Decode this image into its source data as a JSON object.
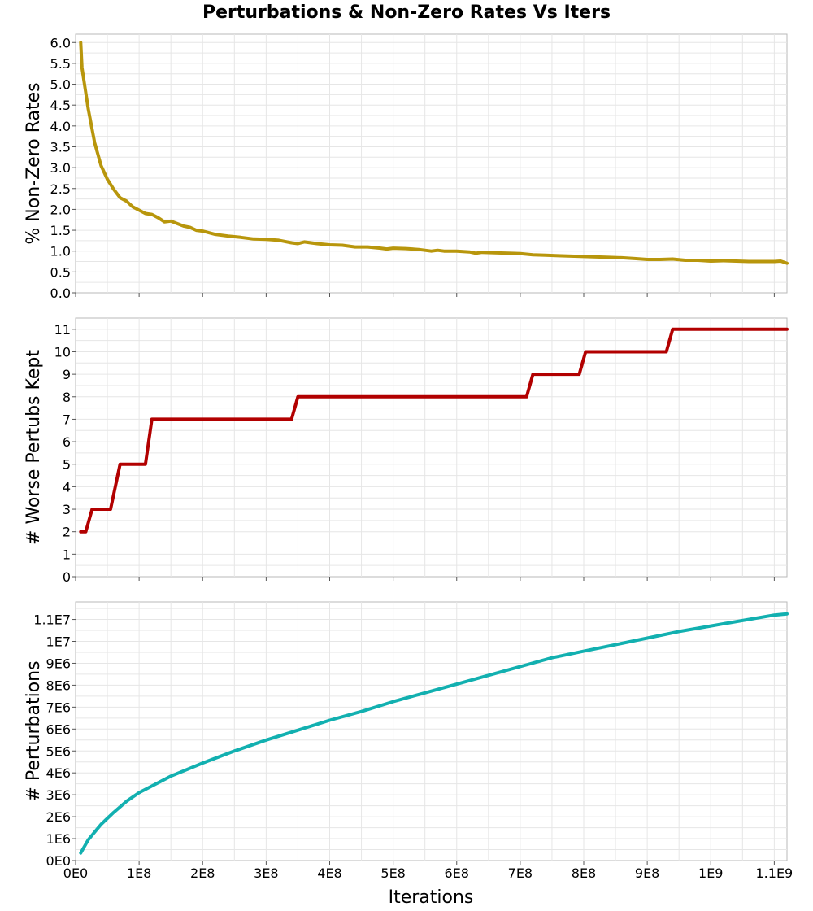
{
  "chart_data": {
    "type": "line",
    "title": "Perturbations & Non-Zero Rates Vs Iters",
    "xlabel": "Iterations",
    "x_ticks": [
      {
        "v": 0,
        "label": "0E0"
      },
      {
        "v": 100000000,
        "label": "1E8"
      },
      {
        "v": 200000000,
        "label": "2E8"
      },
      {
        "v": 300000000,
        "label": "3E8"
      },
      {
        "v": 400000000,
        "label": "4E8"
      },
      {
        "v": 500000000,
        "label": "5E8"
      },
      {
        "v": 600000000,
        "label": "6E8"
      },
      {
        "v": 700000000,
        "label": "7E8"
      },
      {
        "v": 800000000,
        "label": "8E8"
      },
      {
        "v": 900000000,
        "label": "9E8"
      },
      {
        "v": 1000000000,
        "label": "1E9"
      },
      {
        "v": 1100000000,
        "label": "1.1E9"
      }
    ],
    "xlim": [
      0,
      1120000000
    ],
    "panels": [
      {
        "name": "rates",
        "ylabel": "% Non-Zero Rates",
        "color": "#b8960c",
        "ylim": [
          0,
          6.2
        ],
        "y_ticks": [
          {
            "v": 0,
            "label": "0.0"
          },
          {
            "v": 0.5,
            "label": "0.5"
          },
          {
            "v": 1,
            "label": "1.0"
          },
          {
            "v": 1.5,
            "label": "1.5"
          },
          {
            "v": 2,
            "label": "2.0"
          },
          {
            "v": 2.5,
            "label": "2.5"
          },
          {
            "v": 3,
            "label": "3.0"
          },
          {
            "v": 3.5,
            "label": "3.5"
          },
          {
            "v": 4,
            "label": "4.0"
          },
          {
            "v": 4.5,
            "label": "4.5"
          },
          {
            "v": 5,
            "label": "5.0"
          },
          {
            "v": 5.5,
            "label": "5.5"
          },
          {
            "v": 6,
            "label": "6.0"
          }
        ],
        "x": [
          8000000,
          10000000,
          20000000,
          30000000,
          40000000,
          50000000,
          60000000,
          70000000,
          80000000,
          90000000,
          100000000,
          110000000,
          120000000,
          130000000,
          140000000,
          150000000,
          160000000,
          170000000,
          180000000,
          190000000,
          200000000,
          220000000,
          240000000,
          260000000,
          280000000,
          300000000,
          320000000,
          340000000,
          350000000,
          360000000,
          380000000,
          400000000,
          420000000,
          440000000,
          460000000,
          480000000,
          490000000,
          500000000,
          520000000,
          540000000,
          560000000,
          570000000,
          580000000,
          600000000,
          620000000,
          630000000,
          640000000,
          660000000,
          680000000,
          700000000,
          720000000,
          740000000,
          760000000,
          780000000,
          800000000,
          820000000,
          840000000,
          860000000,
          880000000,
          900000000,
          920000000,
          940000000,
          960000000,
          980000000,
          1000000000,
          1020000000,
          1040000000,
          1060000000,
          1080000000,
          1100000000,
          1110000000,
          1120000000
        ],
        "y": [
          6.0,
          5.4,
          4.4,
          3.6,
          3.05,
          2.72,
          2.48,
          2.28,
          2.2,
          2.06,
          1.98,
          1.9,
          1.88,
          1.8,
          1.7,
          1.72,
          1.66,
          1.6,
          1.57,
          1.5,
          1.48,
          1.4,
          1.36,
          1.33,
          1.29,
          1.28,
          1.26,
          1.2,
          1.18,
          1.22,
          1.18,
          1.15,
          1.14,
          1.1,
          1.1,
          1.07,
          1.05,
          1.07,
          1.06,
          1.04,
          1.0,
          1.02,
          1.0,
          1.0,
          0.98,
          0.95,
          0.97,
          0.96,
          0.95,
          0.94,
          0.91,
          0.9,
          0.89,
          0.88,
          0.87,
          0.86,
          0.85,
          0.84,
          0.82,
          0.8,
          0.8,
          0.81,
          0.78,
          0.78,
          0.76,
          0.77,
          0.76,
          0.75,
          0.75,
          0.75,
          0.76,
          0.71
        ]
      },
      {
        "name": "worse",
        "ylabel": "# Worse Pertubs Kept",
        "color": "#b20000",
        "ylim": [
          0,
          11.5
        ],
        "y_ticks": [
          {
            "v": 0,
            "label": "0"
          },
          {
            "v": 1,
            "label": "1"
          },
          {
            "v": 2,
            "label": "2"
          },
          {
            "v": 3,
            "label": "3"
          },
          {
            "v": 4,
            "label": "4"
          },
          {
            "v": 5,
            "label": "5"
          },
          {
            "v": 6,
            "label": "6"
          },
          {
            "v": 7,
            "label": "7"
          },
          {
            "v": 8,
            "label": "8"
          },
          {
            "v": 9,
            "label": "9"
          },
          {
            "v": 10,
            "label": "10"
          },
          {
            "v": 11,
            "label": "11"
          }
        ],
        "x": [
          8000000,
          16000000,
          26000000,
          55000000,
          70000000,
          110000000,
          120000000,
          340000000,
          350000000,
          710000000,
          720000000,
          793000000,
          803000000,
          930000000,
          940000000,
          1120000000
        ],
        "y": [
          2,
          2,
          3,
          3,
          5,
          5,
          7,
          7,
          8,
          8,
          9,
          9,
          10,
          10,
          11,
          11
        ]
      },
      {
        "name": "perturbations",
        "ylabel": "# Perturbations",
        "color": "#12b0b0",
        "ylim": [
          0,
          11800000
        ],
        "y_ticks": [
          {
            "v": 0,
            "label": "0E0"
          },
          {
            "v": 1000000,
            "label": "1E6"
          },
          {
            "v": 2000000,
            "label": "2E6"
          },
          {
            "v": 3000000,
            "label": "3E6"
          },
          {
            "v": 4000000,
            "label": "4E6"
          },
          {
            "v": 5000000,
            "label": "5E6"
          },
          {
            "v": 6000000,
            "label": "6E6"
          },
          {
            "v": 7000000,
            "label": "7E6"
          },
          {
            "v": 8000000,
            "label": "8E6"
          },
          {
            "v": 9000000,
            "label": "9E6"
          },
          {
            "v": 10000000,
            "label": "1E7"
          },
          {
            "v": 11000000,
            "label": "1.1E7"
          }
        ],
        "x": [
          8000000,
          20000000,
          40000000,
          60000000,
          80000000,
          100000000,
          150000000,
          200000000,
          250000000,
          300000000,
          350000000,
          400000000,
          450000000,
          500000000,
          550000000,
          600000000,
          650000000,
          700000000,
          750000000,
          800000000,
          850000000,
          900000000,
          950000000,
          1000000000,
          1050000000,
          1100000000,
          1120000000
        ],
        "y": [
          350000,
          950000,
          1650000,
          2200000,
          2700000,
          3100000,
          3850000,
          4450000,
          5000000,
          5500000,
          5950000,
          6400000,
          6800000,
          7250000,
          7650000,
          8050000,
          8450000,
          8850000,
          9250000,
          9550000,
          9850000,
          10150000,
          10450000,
          10700000,
          10950000,
          11200000,
          11250000
        ]
      }
    ],
    "grid": true
  }
}
